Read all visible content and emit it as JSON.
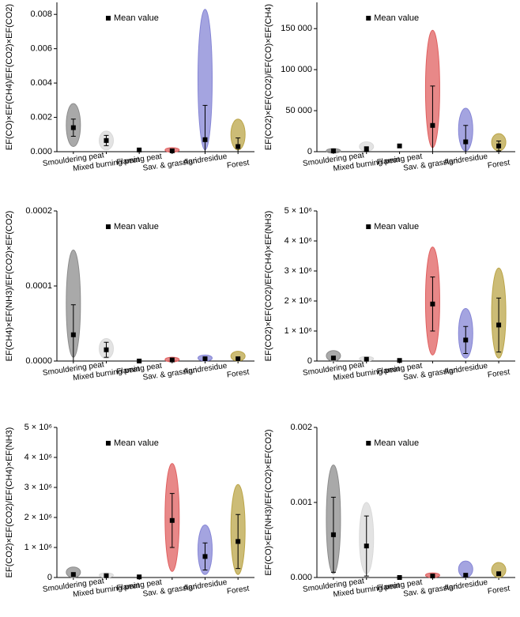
{
  "chart_data": [
    {
      "type": "range",
      "ylabel": "EF(CO)×EF(CH4)/EF(CO2)×EF(CO2)",
      "categories": [
        "Smouldering peat",
        "Mixed burning peat",
        "Flaming peat",
        "Sav. & grassland",
        "Agri. residue",
        "Forest"
      ],
      "colors": [
        "#8c8c8c",
        "#d9d9d9",
        "#000000",
        "#e06060",
        "#8585d5",
        "#bba548"
      ],
      "ylim": [
        0,
        0.0087
      ],
      "yticks": [
        {
          "value": 0,
          "label": "0.000"
        },
        {
          "value": 0.002,
          "label": "0.002"
        },
        {
          "value": 0.004,
          "label": "0.004"
        },
        {
          "value": 0.006,
          "label": "0.006"
        },
        {
          "value": 0.008,
          "label": "0.008"
        }
      ],
      "legend": "upper center",
      "series": [
        {
          "name": "Mean value",
          "color": "#000000",
          "values": [
            0.0014,
            0.00065,
            0.0001,
            5e-05,
            0.0007,
            0.0003
          ],
          "errors": [
            0.0005,
            0.0003,
            null,
            null,
            0.002,
            0.0005
          ],
          "min": [
            0.0003,
            0.0001,
            null,
            0,
            0.0001,
            0.0001
          ],
          "max": [
            0.0028,
            0.0012,
            null,
            0.0002,
            0.0083,
            0.0019
          ]
        }
      ]
    },
    {
      "type": "range",
      "ylabel": "EF(CO2)×EF(CO2)/EF(CO)×EF(CH4)",
      "categories": [
        "Smouldering peat",
        "Mixed burning peat",
        "Flaming peat",
        "Sav. & grassland",
        "Agri. residue",
        "Forest"
      ],
      "colors": [
        "#8c8c8c",
        "#d9d9d9",
        "#000000",
        "#e06060",
        "#8585d5",
        "#bba548"
      ],
      "ylim": [
        0,
        182000
      ],
      "yticks": [
        0,
        {
          "value": 50000,
          "label": "50 000"
        },
        {
          "value": 100000,
          "label": "100 000"
        },
        {
          "value": 150000,
          "label": "150 000"
        }
      ],
      "legend": "upper center",
      "series": [
        {
          "name": "Mean value",
          "color": "#000000",
          "values": [
            1000,
            3000,
            7000,
            32000,
            12000,
            7000
          ],
          "errors": [
            null,
            3000,
            null,
            48000,
            20000,
            6000
          ],
          "min": [
            0,
            500,
            null,
            5000,
            1000,
            1000
          ],
          "max": [
            2000,
            12000,
            null,
            148000,
            53000,
            22000
          ]
        }
      ]
    },
    {
      "type": "range",
      "ylabel": "EF(CH4)×EF(NH3)/EF(CO2)×EF(CO2)",
      "categories": [
        "Smouldering peat",
        "Mixed burning peat",
        "Flaming peat",
        "Sav. & grassland",
        "Agri. residue",
        "Forest"
      ],
      "colors": [
        "#8c8c8c",
        "#d9d9d9",
        "#000000",
        "#e06060",
        "#8585d5",
        "#bba548"
      ],
      "ylim": [
        0,
        0.0002
      ],
      "yticks": [
        {
          "value": 0,
          "label": "0.0000"
        },
        {
          "value": 0.0001,
          "label": "0.0001"
        },
        {
          "value": 0.0002,
          "label": "0.0002"
        }
      ],
      "legend": "upper center",
      "series": [
        {
          "name": "Mean value",
          "color": "#000000",
          "values": [
            3.5e-05,
            1.5e-05,
            0,
            1.5e-06,
            3e-06,
            3e-06
          ],
          "errors": [
            4e-05,
            1e-05,
            null,
            null,
            null,
            null
          ],
          "min": [
            5e-06,
            3e-06,
            null,
            0,
            0,
            0
          ],
          "max": [
            0.000148,
            3e-05,
            null,
            4e-06,
            8e-06,
            1.3e-05
          ]
        }
      ]
    },
    {
      "type": "range",
      "ylabel": "EF(CO2)×EF(CO2)/EF(CH4)×EF(NH3)",
      "categories": [
        "Smouldering peat",
        "Mixed burning peat",
        "Flaming peat",
        "Sav. & grassland",
        "Agri. residue",
        "Forest"
      ],
      "colors": [
        "#8c8c8c",
        "#d9d9d9",
        "#000000",
        "#e06060",
        "#8585d5",
        "#bba548"
      ],
      "ylim": [
        0,
        5000000
      ],
      "yticks": [
        0,
        {
          "value": 1000000,
          "label": "1 × 10⁶"
        },
        {
          "value": 2000000,
          "label": "2 × 10⁶"
        },
        {
          "value": 3000000,
          "label": "3 × 10⁶"
        },
        {
          "value": 4000000,
          "label": "4 × 10⁶"
        },
        {
          "value": 5000000,
          "label": "5 × 10⁶"
        }
      ],
      "legend": "upper center",
      "series": [
        {
          "name": "Mean value",
          "color": "#000000",
          "values": [
            100000,
            60000,
            20000,
            1900000,
            700000,
            1200000
          ],
          "errors": [
            null,
            null,
            null,
            900000,
            450000,
            900000
          ],
          "min": [
            0,
            0,
            null,
            200000,
            100000,
            100000
          ],
          "max": [
            350000,
            150000,
            null,
            3800000,
            1750000,
            3100000
          ]
        }
      ]
    },
    {
      "type": "range",
      "ylabel": "EF(CO2)×EF(CO2)/EF(CH4)×EF(NH3)",
      "categories": [
        "Smouldering peat",
        "Mixed burning peat",
        "Flaming peat",
        "Sav. & grassland",
        "Agri. residue",
        "Forest"
      ],
      "colors": [
        "#8c8c8c",
        "#d9d9d9",
        "#000000",
        "#e06060",
        "#8585d5",
        "#bba548"
      ],
      "ylim": [
        0,
        5000000
      ],
      "yticks": [
        0,
        {
          "value": 1000000,
          "label": "1 × 10⁶"
        },
        {
          "value": 2000000,
          "label": "2 × 10⁶"
        },
        {
          "value": 3000000,
          "label": "3 × 10⁶"
        },
        {
          "value": 4000000,
          "label": "4 × 10⁶"
        },
        {
          "value": 5000000,
          "label": "5 × 10⁶"
        }
      ],
      "legend": "upper center",
      "series": [
        {
          "name": "Mean value",
          "color": "#000000",
          "values": [
            100000,
            60000,
            20000,
            1900000,
            700000,
            1200000
          ],
          "errors": [
            null,
            null,
            null,
            900000,
            450000,
            900000
          ],
          "min": [
            0,
            0,
            null,
            200000,
            100000,
            100000
          ],
          "max": [
            350000,
            150000,
            null,
            3800000,
            1750000,
            3100000
          ]
        }
      ]
    },
    {
      "type": "range",
      "ylabel": "EF(CO)×EF(NH3)/EF(CO2)×EF(CO2)",
      "categories": [
        "Smouldering peat",
        "Mixed burning peat",
        "Flaming peat",
        "Sav. & grassland",
        "Agri. residue",
        "Forest"
      ],
      "colors": [
        "#8c8c8c",
        "#d9d9d9",
        "#000000",
        "#e06060",
        "#8585d5",
        "#bba548"
      ],
      "ylim": [
        0,
        0.002
      ],
      "yticks": [
        {
          "value": 0,
          "label": "0.000"
        },
        {
          "value": 0.001,
          "label": "0.001"
        },
        {
          "value": 0.002,
          "label": "0.002"
        }
      ],
      "legend": "upper center",
      "series": [
        {
          "name": "Mean value",
          "color": "#000000",
          "values": [
            0.00057,
            0.00042,
            0,
            2e-05,
            3e-05,
            5e-05
          ],
          "errors": [
            0.0005,
            0.0004,
            null,
            null,
            null,
            null
          ],
          "min": [
            5e-05,
            5e-05,
            null,
            0,
            0,
            0
          ],
          "max": [
            0.0015,
            0.001,
            null,
            6e-05,
            0.00022,
            0.0002
          ]
        }
      ]
    }
  ]
}
